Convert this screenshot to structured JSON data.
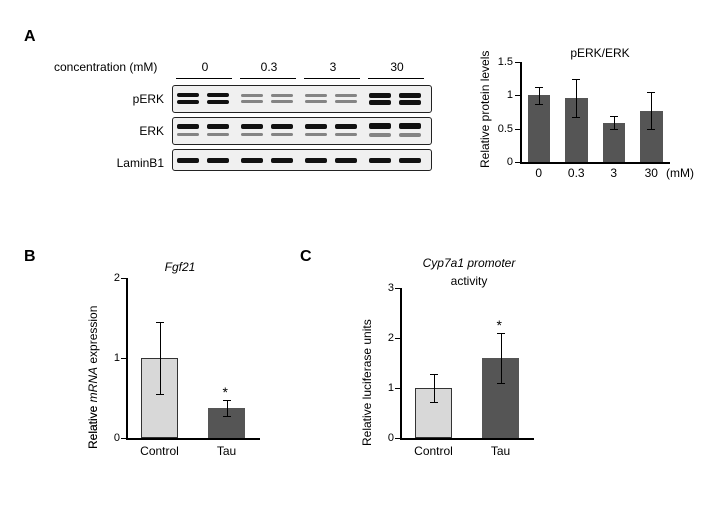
{
  "panelA": {
    "label": "A",
    "concentrationLabel": "concentration (mM)",
    "concentrations": [
      "0",
      "0.3",
      "3",
      "30"
    ],
    "rowLabels": [
      "pERK",
      "ERK",
      "LaminB1"
    ],
    "chart": {
      "title": "pERK/ERK",
      "yAxisLabel": "Relative protein levels",
      "xAxisLabel": "(mM)",
      "categories": [
        "0",
        "0.3",
        "3",
        "30"
      ],
      "values": [
        1.0,
        0.96,
        0.59,
        0.77
      ],
      "errMinus": [
        0.13,
        0.29,
        0.1,
        0.28
      ],
      "errPlus": [
        0.13,
        0.29,
        0.1,
        0.28
      ],
      "ylim": [
        0,
        1.5
      ],
      "yticks": [
        0,
        0.5,
        1.0,
        1.5
      ],
      "barColor": "#555555",
      "background": "#ffffff",
      "fontsize": 11
    }
  },
  "panelB": {
    "label": "B",
    "title": "Fgf21",
    "yAxisLabel": "Relative mRNA expression",
    "categories": [
      "Control",
      "Tau"
    ],
    "values": [
      1.0,
      0.38
    ],
    "errMinus": [
      0.45,
      0.1
    ],
    "errPlus": [
      0.45,
      0.1
    ],
    "sig": [
      null,
      "*"
    ],
    "ylim": [
      0,
      2.0
    ],
    "yticks": [
      0,
      1.0,
      2.0
    ],
    "barColors": [
      "#d8d8d8",
      "#555555"
    ],
    "fontsize": 11
  },
  "panelC": {
    "label": "C",
    "title": "Cyp7a1 promoter",
    "subtitleTrailing": "activity",
    "yAxisLabel": "Relative luciferase units",
    "categories": [
      "Control",
      "Tau"
    ],
    "values": [
      1.0,
      1.6
    ],
    "errMinus": [
      0.28,
      0.5
    ],
    "errPlus": [
      0.28,
      0.5
    ],
    "sig": [
      null,
      "*"
    ],
    "ylim": [
      0,
      3.0
    ],
    "yticks": [
      0,
      1,
      2,
      3
    ],
    "barColors": [
      "#d8d8d8",
      "#555555"
    ],
    "fontsize": 11
  }
}
